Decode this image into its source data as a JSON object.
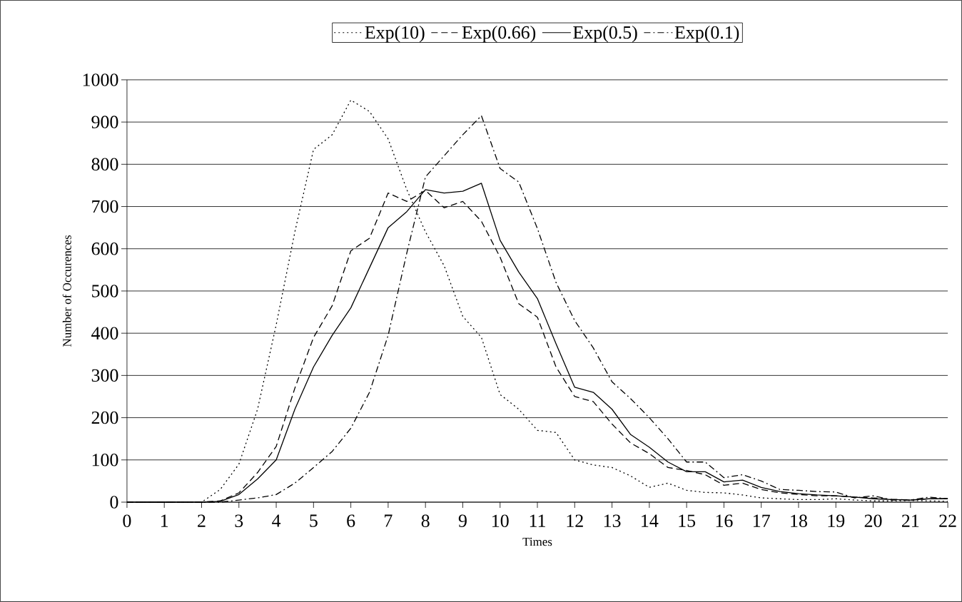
{
  "chart_data": {
    "type": "line",
    "xlabel": "Times",
    "ylabel": "Number of Occurences",
    "x": [
      0,
      0.5,
      1,
      1.5,
      2,
      2.5,
      3,
      3.5,
      4,
      4.5,
      5,
      5.5,
      6,
      6.5,
      7,
      7.5,
      8,
      8.5,
      9,
      9.5,
      10,
      10.5,
      11,
      11.5,
      12,
      12.5,
      13,
      13.5,
      14,
      14.5,
      15,
      15.5,
      16,
      16.5,
      17,
      17.5,
      18,
      18.5,
      19,
      19.5,
      20,
      20.5,
      21,
      21.5,
      22
    ],
    "series": [
      {
        "name": "Exp(10)",
        "color": "#000000",
        "line_style": "dotted",
        "values": [
          0,
          0,
          0,
          0,
          0,
          30,
          90,
          220,
          420,
          640,
          835,
          870,
          952,
          925,
          860,
          740,
          640,
          560,
          440,
          390,
          255,
          220,
          170,
          165,
          100,
          88,
          82,
          62,
          35,
          45,
          28,
          23,
          22,
          17,
          10,
          8,
          6,
          6,
          8,
          5,
          3,
          3,
          4,
          3,
          2
        ]
      },
      {
        "name": "Exp(0.66)",
        "color": "#000000",
        "line_style": "dashed",
        "values": [
          0,
          0,
          0,
          0,
          0,
          3,
          22,
          70,
          132,
          270,
          390,
          465,
          595,
          625,
          732,
          712,
          738,
          697,
          712,
          665,
          580,
          470,
          438,
          320,
          250,
          238,
          185,
          140,
          115,
          82,
          75,
          65,
          40,
          45,
          30,
          22,
          18,
          15,
          15,
          12,
          10,
          7,
          5,
          8,
          8
        ]
      },
      {
        "name": "Exp(0.5)",
        "color": "#000000",
        "line_style": "solid",
        "values": [
          0,
          0,
          0,
          0,
          0,
          2,
          18,
          55,
          100,
          220,
          320,
          395,
          460,
          555,
          650,
          688,
          740,
          732,
          736,
          755,
          620,
          545,
          482,
          375,
          272,
          260,
          220,
          160,
          130,
          95,
          72,
          72,
          48,
          52,
          35,
          25,
          20,
          17,
          15,
          12,
          8,
          6,
          5,
          8,
          8
        ]
      },
      {
        "name": "Exp(0.1)",
        "color": "#000000",
        "line_style": "dashdot",
        "values": [
          0,
          0,
          0,
          0,
          0,
          0,
          5,
          10,
          18,
          45,
          82,
          120,
          175,
          260,
          395,
          590,
          770,
          820,
          870,
          915,
          790,
          758,
          648,
          520,
          430,
          365,
          285,
          245,
          200,
          150,
          95,
          95,
          58,
          65,
          50,
          30,
          28,
          25,
          24,
          10,
          15,
          5,
          5,
          12,
          8
        ]
      }
    ],
    "xlim": [
      0,
      22
    ],
    "xticks": [
      0,
      1,
      2,
      3,
      4,
      5,
      6,
      7,
      8,
      9,
      10,
      11,
      12,
      13,
      14,
      15,
      16,
      17,
      18,
      19,
      20,
      21,
      22
    ],
    "ylim": [
      0,
      1000
    ],
    "yticks": [
      0,
      100,
      200,
      300,
      400,
      500,
      600,
      700,
      800,
      900,
      1000
    ],
    "grid": "y",
    "legend": "top",
    "marker": "none"
  }
}
